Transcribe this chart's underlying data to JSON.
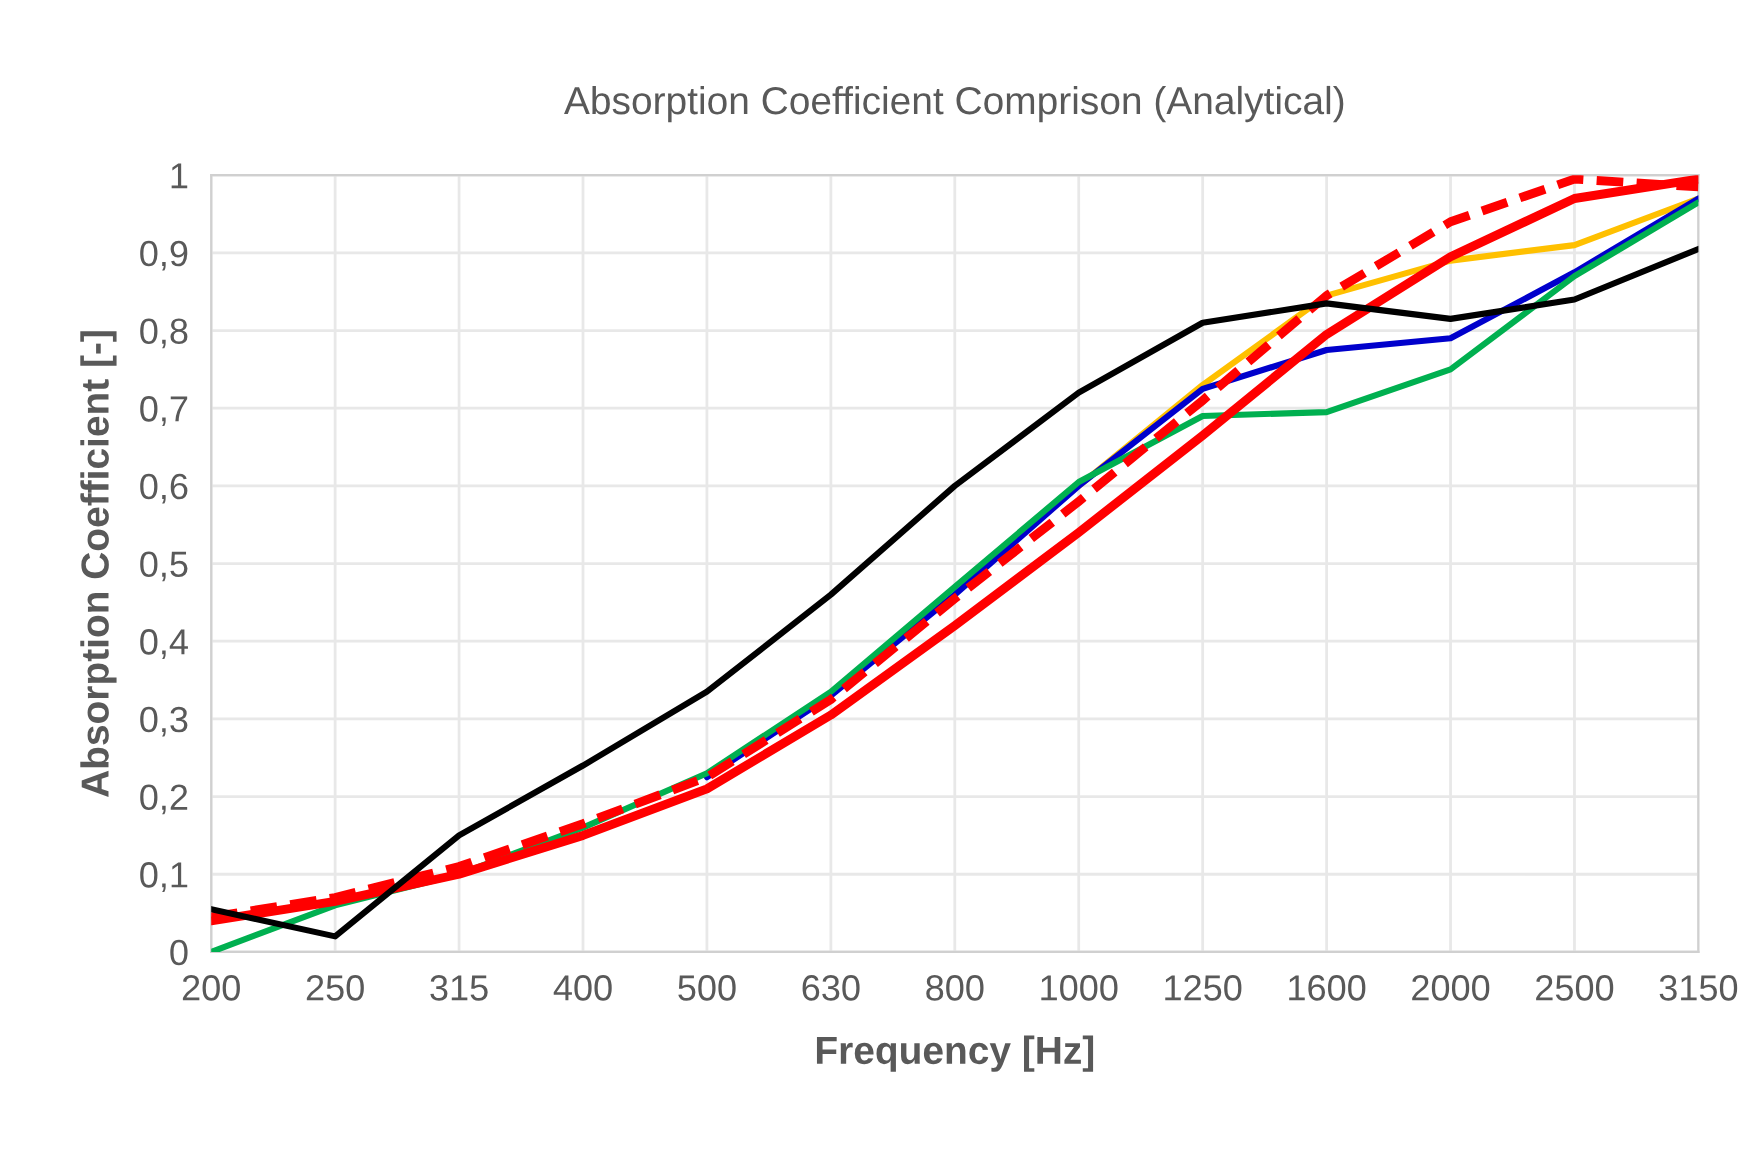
{
  "chart_data": {
    "type": "line",
    "title": "Absorption Coefficient Comprison (Analytical)",
    "xlabel": "Frequency [Hz]",
    "ylabel": "Absorption Coefficient [-]",
    "categories": [
      "200",
      "250",
      "315",
      "400",
      "500",
      "630",
      "800",
      "1000",
      "1250",
      "1600",
      "2000",
      "2500",
      "3150"
    ],
    "ylim": [
      0,
      1
    ],
    "yticks": [
      0,
      {
        "value": 0.1,
        "label": "0,1"
      },
      {
        "value": 0.2,
        "label": "0,2"
      },
      {
        "value": 0.3,
        "label": "0,3"
      },
      {
        "value": 0.4,
        "label": "0,4"
      },
      {
        "value": 0.5,
        "label": "0,5"
      },
      {
        "value": 0.6,
        "label": "0,6"
      },
      {
        "value": 0.7,
        "label": "0,7"
      },
      {
        "value": 0.8,
        "label": "0,8"
      },
      {
        "value": 0.9,
        "label": "0,9"
      },
      1
    ],
    "grid": true,
    "legend": false,
    "series": [
      {
        "color": "#ffc000",
        "values": [
          null,
          null,
          null,
          null,
          null,
          null,
          null,
          0.6,
          0.73,
          0.845,
          0.89,
          0.91,
          0.97
        ]
      },
      {
        "color": "#0000cc",
        "values": [
          null,
          null,
          null,
          null,
          0.225,
          0.33,
          0.46,
          0.6,
          0.725,
          0.775,
          0.79,
          0.875,
          0.97
        ]
      },
      {
        "color": "#00b050",
        "values": [
          0.0,
          0.06,
          0.1,
          0.16,
          0.23,
          0.335,
          0.47,
          0.605,
          0.69,
          0.695,
          0.75,
          0.87,
          0.965
        ]
      },
      {
        "color": "#ff0000",
        "line_style": "dashed",
        "values": [
          0.045,
          0.07,
          0.11,
          0.165,
          0.225,
          0.325,
          0.455,
          0.58,
          0.71,
          0.845,
          0.94,
          0.995,
          0.985
        ]
      },
      {
        "color": "#ff0000",
        "values": [
          0.04,
          0.065,
          0.1,
          0.15,
          0.21,
          0.305,
          0.42,
          0.54,
          0.665,
          0.795,
          0.895,
          0.97,
          0.995
        ]
      },
      {
        "color": "#000000",
        "values": [
          0.055,
          0.02,
          0.15,
          0.24,
          0.335,
          0.46,
          0.6,
          0.72,
          0.81,
          0.835,
          0.815,
          0.84,
          0.905
        ]
      }
    ]
  }
}
